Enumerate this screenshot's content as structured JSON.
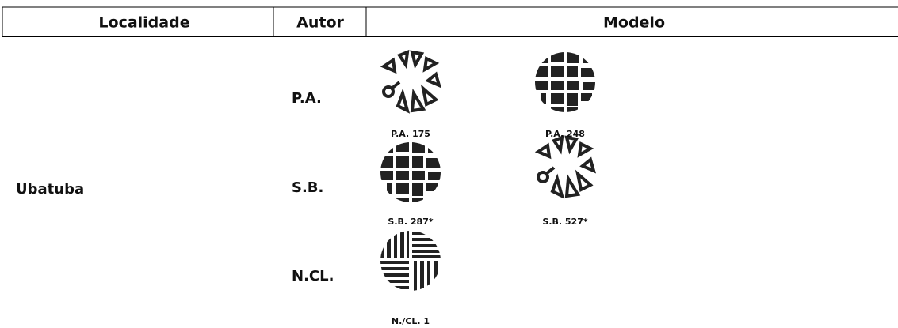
{
  "header": {
    "columns": [
      "Localidade",
      "Autor",
      "Modelo"
    ]
  },
  "table": {
    "locality": "Ubatuba",
    "rows": [
      {
        "author": "P.A.",
        "models": [
          "P.A. 175",
          "P.A. 248"
        ]
      },
      {
        "author": "S.B.",
        "models": [
          "S.B. 287*",
          "S.B. 527*"
        ]
      },
      {
        "author": "N.CL.",
        "models": [
          "N./CL. 1"
        ]
      }
    ]
  }
}
